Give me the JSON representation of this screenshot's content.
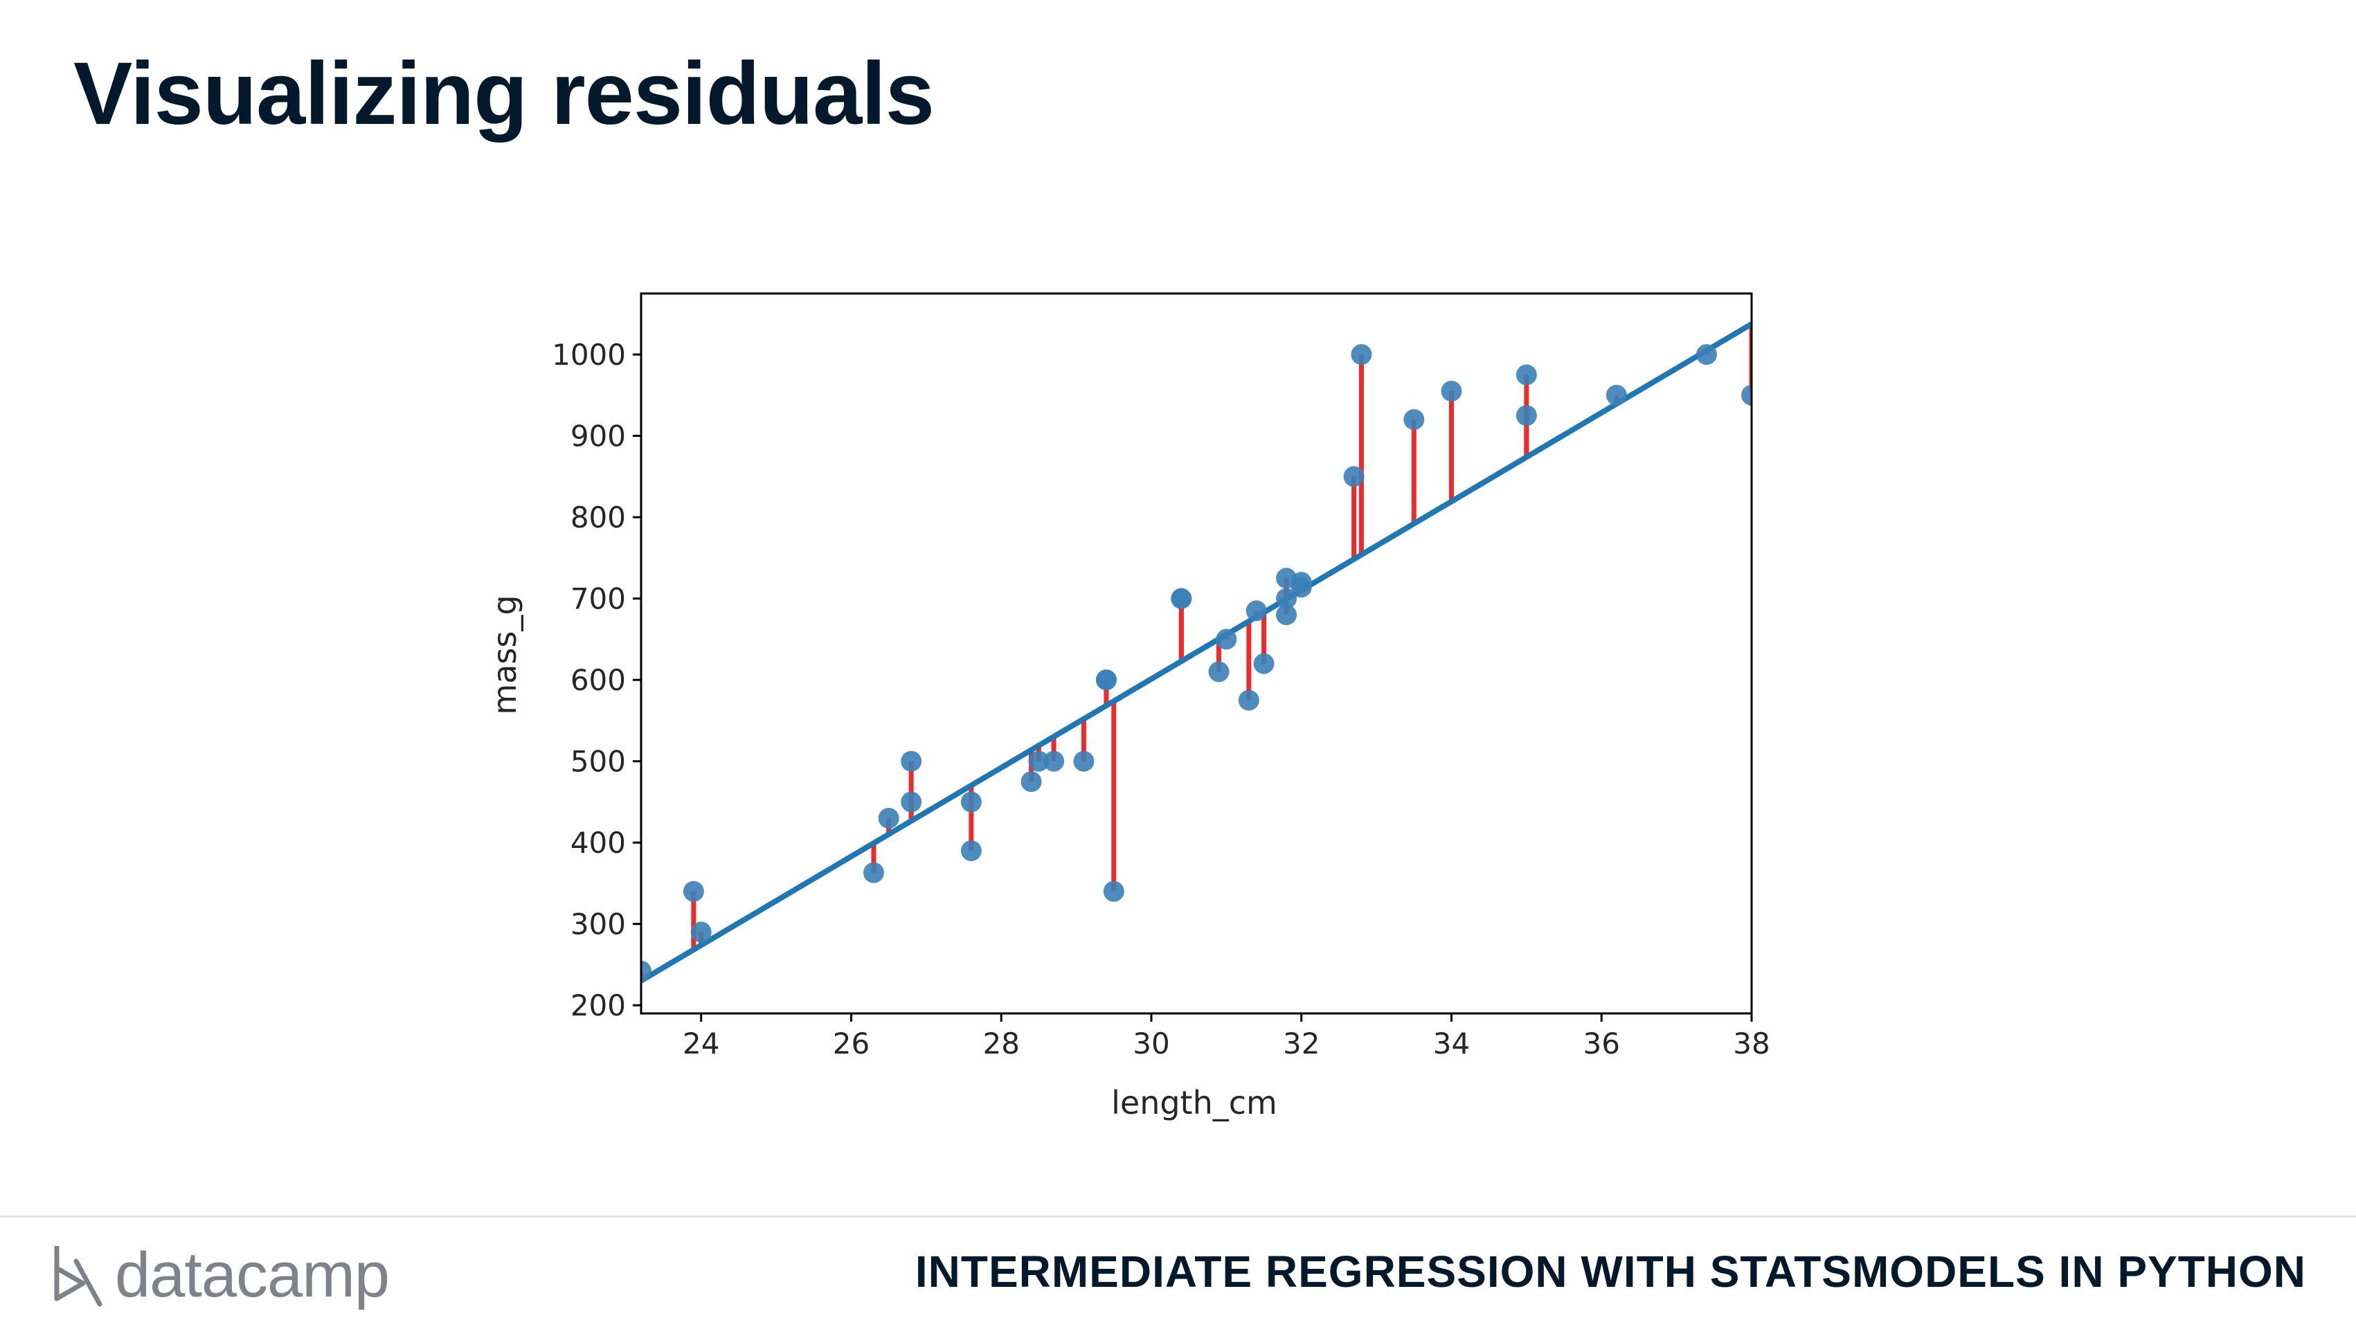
{
  "slide": {
    "title": "Visualizing residuals",
    "brand_name": "datacamp",
    "course_title": "INTERMEDIATE REGRESSION WITH STATSMODELS IN PYTHON"
  },
  "chart_data": {
    "type": "scatter",
    "title": "",
    "xlabel": "length_cm",
    "ylabel": "mass_g",
    "xlim": [
      23.2,
      38.0
    ],
    "ylim": [
      190,
      1075
    ],
    "xticks": [
      24,
      26,
      28,
      30,
      32,
      34,
      36,
      38
    ],
    "yticks": [
      200,
      300,
      400,
      500,
      600,
      700,
      800,
      900,
      1000
    ],
    "grid": false,
    "points": [
      [
        23.2,
        242
      ],
      [
        23.9,
        340
      ],
      [
        24.0,
        290
      ],
      [
        26.3,
        363
      ],
      [
        26.5,
        430
      ],
      [
        26.8,
        450
      ],
      [
        26.8,
        500
      ],
      [
        27.6,
        390
      ],
      [
        27.6,
        450
      ],
      [
        28.4,
        475
      ],
      [
        28.5,
        500
      ],
      [
        28.7,
        500
      ],
      [
        29.1,
        500
      ],
      [
        29.4,
        600
      ],
      [
        29.4,
        600
      ],
      [
        29.5,
        340
      ],
      [
        30.4,
        700
      ],
      [
        30.4,
        700
      ],
      [
        30.9,
        610
      ],
      [
        31.0,
        650
      ],
      [
        31.3,
        575
      ],
      [
        31.4,
        685
      ],
      [
        31.5,
        620
      ],
      [
        31.8,
        680
      ],
      [
        31.8,
        700
      ],
      [
        31.8,
        725
      ],
      [
        32.0,
        720
      ],
      [
        32.0,
        714
      ],
      [
        32.7,
        850
      ],
      [
        32.8,
        1000
      ],
      [
        33.5,
        920
      ],
      [
        34.0,
        955
      ],
      [
        35.0,
        925
      ],
      [
        35.0,
        975
      ],
      [
        36.2,
        950
      ],
      [
        37.4,
        1000
      ],
      [
        38.0,
        950
      ]
    ],
    "regression_line": {
      "slope": 54.55,
      "intercept": -1035.35
    },
    "colors": {
      "points": "#3b7fb6",
      "line": "#1f77b4",
      "residuals": "#ee2b2b"
    }
  }
}
